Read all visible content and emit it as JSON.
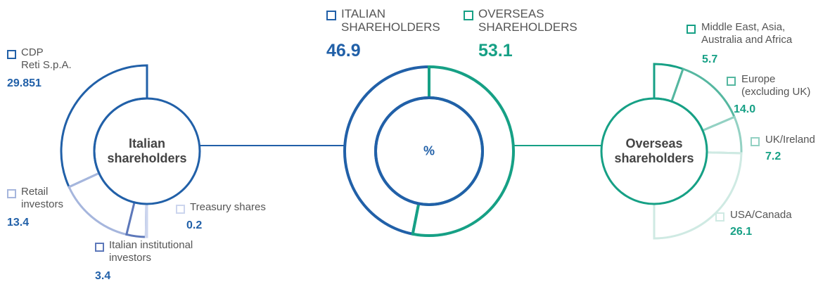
{
  "chart_data": [
    {
      "type": "pie",
      "title": "Italian\nshareholders",
      "categories": [
        "CDP\nReti S.p.A.",
        "Retail\ninvestors",
        "Italian institutional\ninvestors",
        "Treasury shares"
      ],
      "values": [
        29.851,
        13.4,
        3.4,
        0.2
      ],
      "colors": [
        "#2160a8",
        "#a6b6dd",
        "#5d78ba",
        "#ccd5ee"
      ]
    },
    {
      "type": "pie",
      "title": "%",
      "categories": [
        "ITALIAN\nSHAREHOLDERS",
        "OVERSEAS\nSHAREHOLDERS"
      ],
      "values": [
        46.9,
        53.1
      ],
      "colors": [
        "#2160a8",
        "#16a085"
      ]
    },
    {
      "type": "pie",
      "title": "Overseas\nshareholders",
      "categories": [
        "Middle East, Asia,\nAustralia and Africa",
        "Europe\n(excluding UK)",
        "UK/Ireland",
        "USA/Canada"
      ],
      "values": [
        5.7,
        14.0,
        7.2,
        26.1
      ],
      "value_labels": [
        "5.7",
        "14.0",
        "7.2",
        "26.1"
      ],
      "colors": [
        "#16a085",
        "#55b7a0",
        "#93d1c3",
        "#cfeae3"
      ]
    }
  ]
}
